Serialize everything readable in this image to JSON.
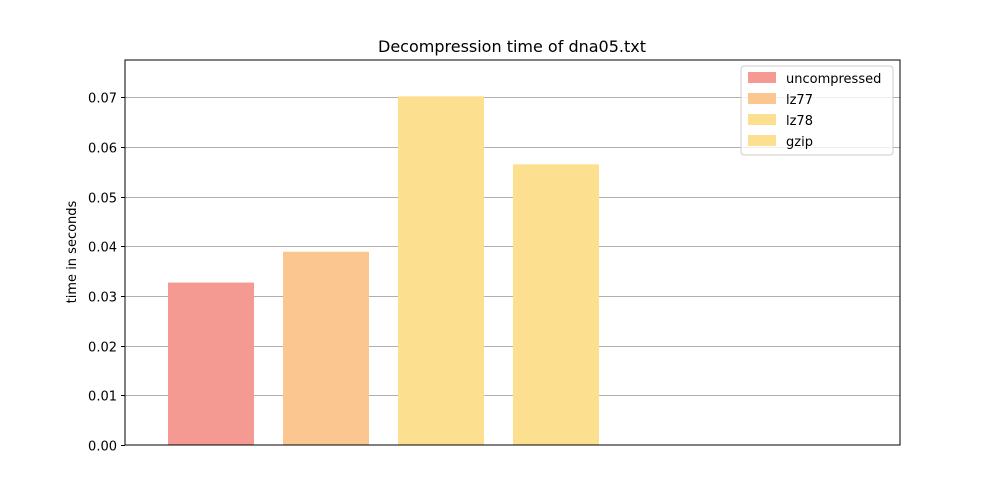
{
  "chart_data": {
    "type": "bar",
    "title": "Decompression time of dna05.txt",
    "xlabel": "",
    "ylabel": "time in seconds",
    "ylim": [
      0,
      0.0775
    ],
    "yticks": [
      0.0,
      0.01,
      0.02,
      0.03,
      0.04,
      0.05,
      0.06,
      0.07
    ],
    "ytick_labels": [
      "0.00",
      "0.01",
      "0.02",
      "0.03",
      "0.04",
      "0.05",
      "0.06",
      "0.07"
    ],
    "grid": "horizontal",
    "legend_position": "top-right",
    "categories": [
      "uncompressed",
      "lz77",
      "lz78",
      "gzip"
    ],
    "values": [
      0.0327,
      0.0389,
      0.0702,
      0.0565
    ],
    "colors": [
      "#f59a93",
      "#fbc68f",
      "#fddf90",
      "#fddf90"
    ],
    "legend": [
      {
        "label": "uncompressed",
        "color": "#f59a93"
      },
      {
        "label": "lz77",
        "color": "#fbc68f"
      },
      {
        "label": "lz78",
        "color": "#fddf90"
      },
      {
        "label": "gzip",
        "color": "#fddf90"
      }
    ]
  }
}
